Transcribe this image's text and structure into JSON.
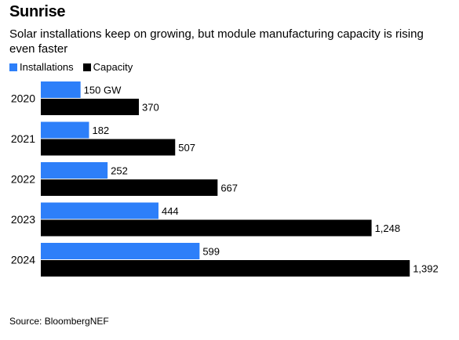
{
  "title": "Sunrise",
  "subtitle": "Solar installations keep on growing, but module manufacturing capacity is rising even faster",
  "source": "Source: BloombergNEF",
  "colors": {
    "installations": "#2d7ff9",
    "capacity": "#000000"
  },
  "chart_data": {
    "type": "bar",
    "orientation": "horizontal",
    "categories": [
      "2020",
      "2021",
      "2022",
      "2023",
      "2024"
    ],
    "series": [
      {
        "name": "Installations",
        "values": [
          150,
          182,
          252,
          444,
          599
        ],
        "labels": [
          "150 GW",
          "182",
          "252",
          "444",
          "599"
        ]
      },
      {
        "name": "Capacity",
        "values": [
          370,
          507,
          667,
          1248,
          1392
        ],
        "labels": [
          "370",
          "507",
          "667",
          "1,248",
          "1,392"
        ]
      }
    ],
    "legend_position": "top-left",
    "grid": false
  }
}
